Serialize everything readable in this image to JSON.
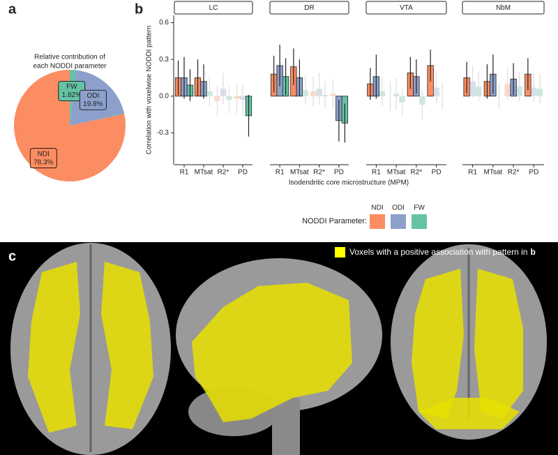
{
  "panel_labels": [
    "a",
    "b",
    "c"
  ],
  "chart_data": [
    {
      "type": "pie",
      "title": [
        "Relative contribution of",
        "each NODDI parameter"
      ],
      "categories": [
        "NDI",
        "ODI",
        "FW"
      ],
      "values": [
        78.3,
        19.8,
        1.82
      ],
      "value_labels": [
        "78.3%",
        "19.8%",
        "1.82%"
      ],
      "colors": [
        "#fc8d62",
        "#8da0cb",
        "#66c2a5"
      ]
    },
    {
      "type": "faceted_bar",
      "ylabel": "Correlation with voxelwise NODDI pattern",
      "xlabel": "Isodendritic core microstructure (MPM)",
      "categories": [
        "R1",
        "MTsat",
        "R2*",
        "PD"
      ],
      "ylim": [
        -0.56,
        0.66
      ],
      "yticks": [
        -0.3,
        {
          "value": 0,
          "label": "0.0"
        },
        0.3,
        0.6
      ],
      "legend_title": "NODDI Parameter:",
      "series": [
        {
          "name": "NDI",
          "color": "#fc8d62"
        },
        {
          "name": "ODI",
          "color": "#8da0cb"
        },
        {
          "name": "FW",
          "color": "#66c2a5"
        }
      ],
      "facets": [
        {
          "name": "LC",
          "values": [
            [
              0.15,
              0.15,
              -0.04,
              -0.02
            ],
            [
              0.15,
              0.12,
              0.06,
              -0.03
            ],
            [
              0.09,
              0.04,
              -0.03,
              -0.16
            ]
          ],
          "errors": [
            [
              0.14,
              0.15,
              0.12,
              0.12
            ],
            [
              0.17,
              0.14,
              0.13,
              0.13
            ],
            [
              0.13,
              0.12,
              0.11,
              0.17
            ]
          ],
          "significant": [
            [
              true,
              true,
              false,
              false
            ],
            [
              true,
              true,
              false,
              false
            ],
            [
              true,
              false,
              false,
              true
            ]
          ]
        },
        {
          "name": "DR",
          "values": [
            [
              0.18,
              0.24,
              0.04,
              0.02
            ],
            [
              0.25,
              0.15,
              0.06,
              -0.2
            ],
            [
              0.16,
              0.05,
              0.01,
              -0.22
            ]
          ],
          "errors": [
            [
              0.15,
              0.15,
              0.12,
              0.12
            ],
            [
              0.17,
              0.15,
              0.13,
              0.17
            ],
            [
              0.15,
              0.12,
              0.11,
              0.16
            ]
          ],
          "significant": [
            [
              true,
              true,
              false,
              false
            ],
            [
              true,
              true,
              false,
              true
            ],
            [
              true,
              false,
              false,
              true
            ]
          ]
        },
        {
          "name": "VTA",
          "values": [
            [
              0.1,
              0.0,
              0.19,
              0.25
            ],
            [
              0.16,
              0.02,
              0.16,
              0.07
            ],
            [
              0.04,
              -0.05,
              -0.07,
              0.0
            ]
          ],
          "errors": [
            [
              0.13,
              0.12,
              0.13,
              0.13
            ],
            [
              0.18,
              0.13,
              0.14,
              0.13
            ],
            [
              0.12,
              0.11,
              0.12,
              0.11
            ]
          ],
          "significant": [
            [
              true,
              false,
              true,
              true
            ],
            [
              true,
              false,
              true,
              false
            ],
            [
              false,
              false,
              false,
              false
            ]
          ]
        },
        {
          "name": "NbM",
          "values": [
            [
              0.15,
              0.12,
              0.1,
              0.18
            ],
            [
              0.12,
              0.18,
              0.14,
              0.07
            ],
            [
              0.08,
              0.0,
              0.08,
              0.06
            ]
          ],
          "errors": [
            [
              0.13,
              0.14,
              0.13,
              0.13
            ],
            [
              0.13,
              0.16,
              0.13,
              0.12
            ],
            [
              0.12,
              0.11,
              0.12,
              0.12
            ]
          ],
          "significant": [
            [
              true,
              true,
              false,
              true
            ],
            [
              false,
              true,
              true,
              false
            ],
            [
              false,
              false,
              false,
              false
            ]
          ]
        }
      ]
    }
  ],
  "image_panel": {
    "legend_text": "Voxels with a positive association with pattern in",
    "legend_ref": "b"
  }
}
